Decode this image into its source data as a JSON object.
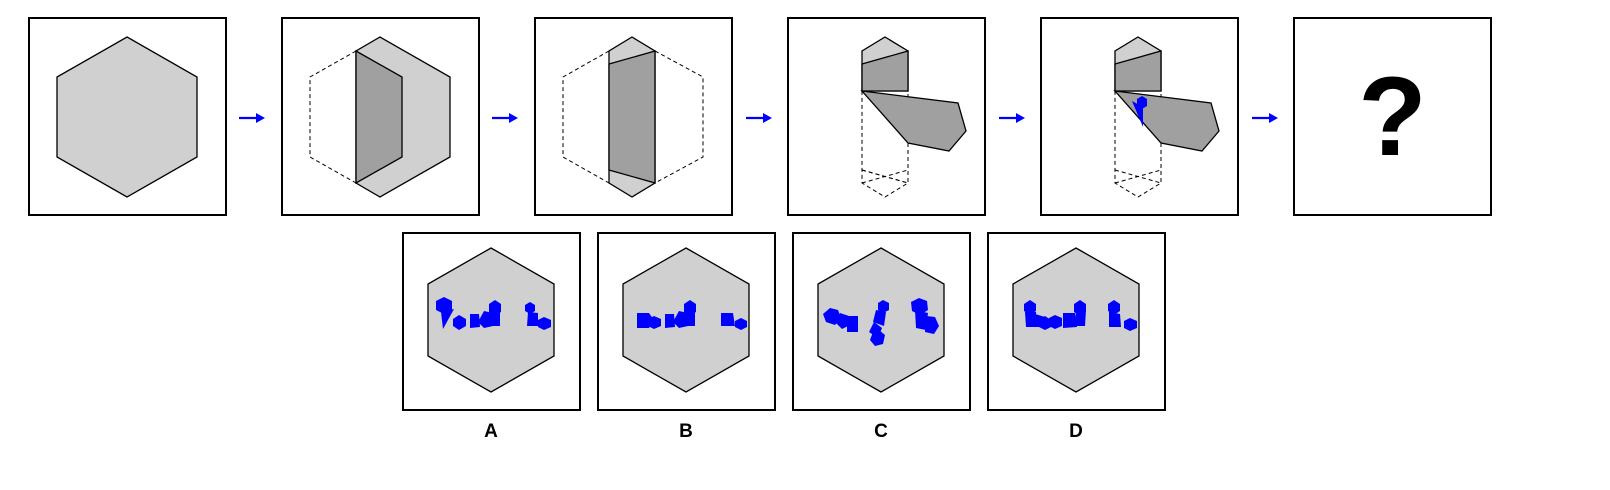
{
  "question": {
    "symbol": "?"
  },
  "options": [
    {
      "label": "A"
    },
    {
      "label": "B"
    },
    {
      "label": "C"
    },
    {
      "label": "D"
    }
  ],
  "colors": {
    "paper": "#d0d0d0",
    "fold": "#a0a0a0",
    "cut": "#0000ff",
    "arrow": "#0000ff",
    "outline": "#000000"
  },
  "icons": {
    "arrow": "right-arrow-icon",
    "hole": "blue-hexagon-hole"
  }
}
